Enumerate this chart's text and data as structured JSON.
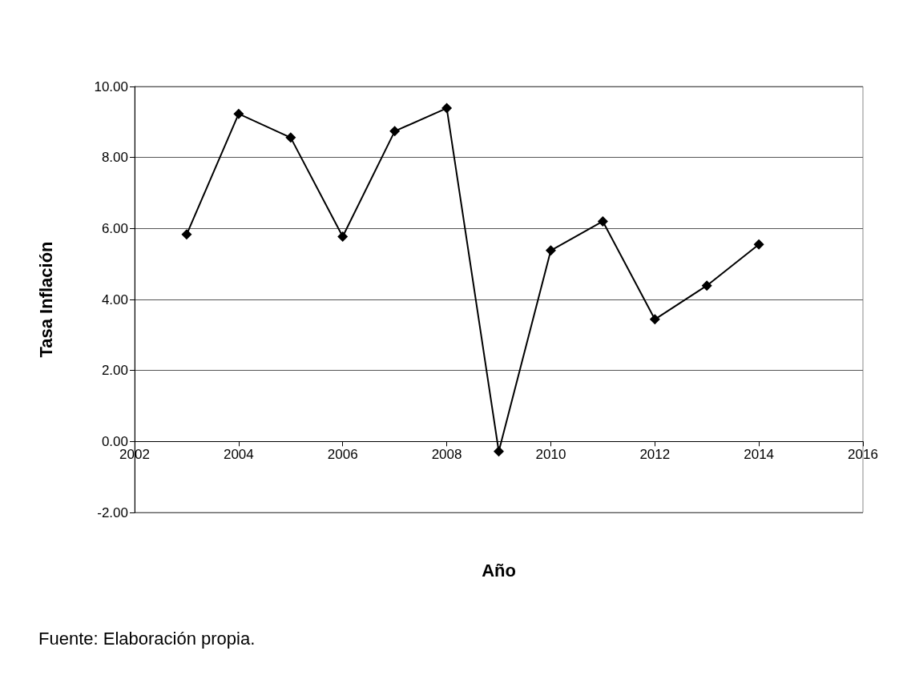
{
  "chart_data": {
    "type": "line",
    "xlabel": "Año",
    "ylabel": "Tasa Inflación",
    "x": [
      2003,
      2004,
      2005,
      2006,
      2007,
      2008,
      2009,
      2010,
      2011,
      2012,
      2013,
      2014
    ],
    "values": [
      5.83,
      9.23,
      8.56,
      5.77,
      8.74,
      9.39,
      -0.28,
      5.38,
      6.2,
      3.44,
      4.39,
      5.55
    ],
    "color": "#000000",
    "marker": "diamond",
    "line_style": "solid",
    "grid": "y",
    "xlim": [
      2002,
      2016
    ],
    "xticks": [
      2002,
      2004,
      2006,
      2008,
      2010,
      2012,
      2014,
      2016
    ],
    "ylim": [
      -2,
      10
    ],
    "yticks": [
      {
        "value": -2,
        "label": "-2.00"
      },
      {
        "value": 0,
        "label": "0.00"
      },
      {
        "value": 2,
        "label": "2.00"
      },
      {
        "value": 4,
        "label": "4.00"
      },
      {
        "value": 6,
        "label": "6.00"
      },
      {
        "value": 8,
        "label": "8.00"
      },
      {
        "value": 10,
        "label": "10.00"
      }
    ],
    "annotations": [
      "Fuente: Elaboración propia."
    ]
  }
}
